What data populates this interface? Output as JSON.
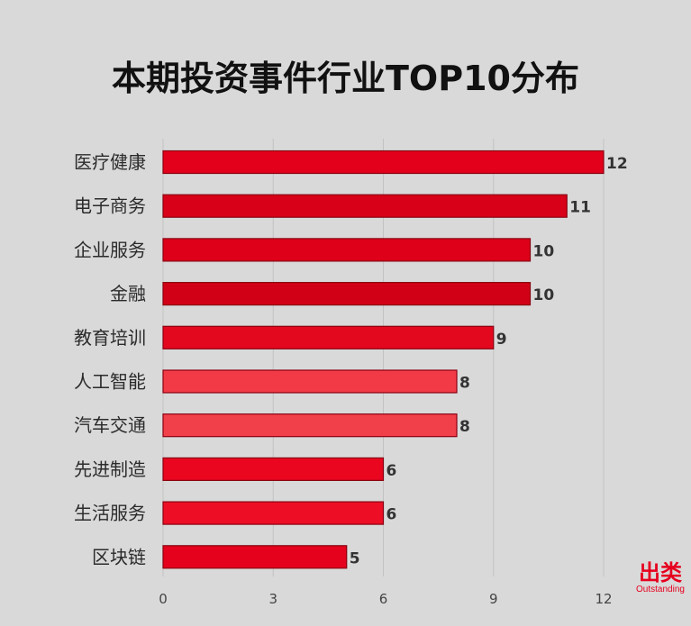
{
  "chart_data": {
    "type": "bar",
    "orientation": "horizontal",
    "title": "本期投资事件行业TOP10分布",
    "categories": [
      "医疗健康",
      "电子商务",
      "企业服务",
      "金融",
      "教育培训",
      "人工智能",
      "汽车交通",
      "先进制造",
      "生活服务",
      "区块链"
    ],
    "values": [
      12,
      11,
      10,
      10,
      9,
      8,
      8,
      6,
      6,
      5
    ],
    "bar_colors": [
      "#e3001b",
      "#d80018",
      "#de0019",
      "#d20016",
      "#e4081f",
      "#f23a47",
      "#f2404b",
      "#e9061e",
      "#ed0e26",
      "#e5001c"
    ],
    "xlim": [
      0,
      12
    ],
    "xticks": [
      0,
      3,
      6,
      9,
      12
    ],
    "xlabel": "",
    "ylabel": "",
    "grid": "vertical",
    "legend": "none"
  },
  "logo": {
    "main": "出类",
    "sub": "Outstanding"
  }
}
